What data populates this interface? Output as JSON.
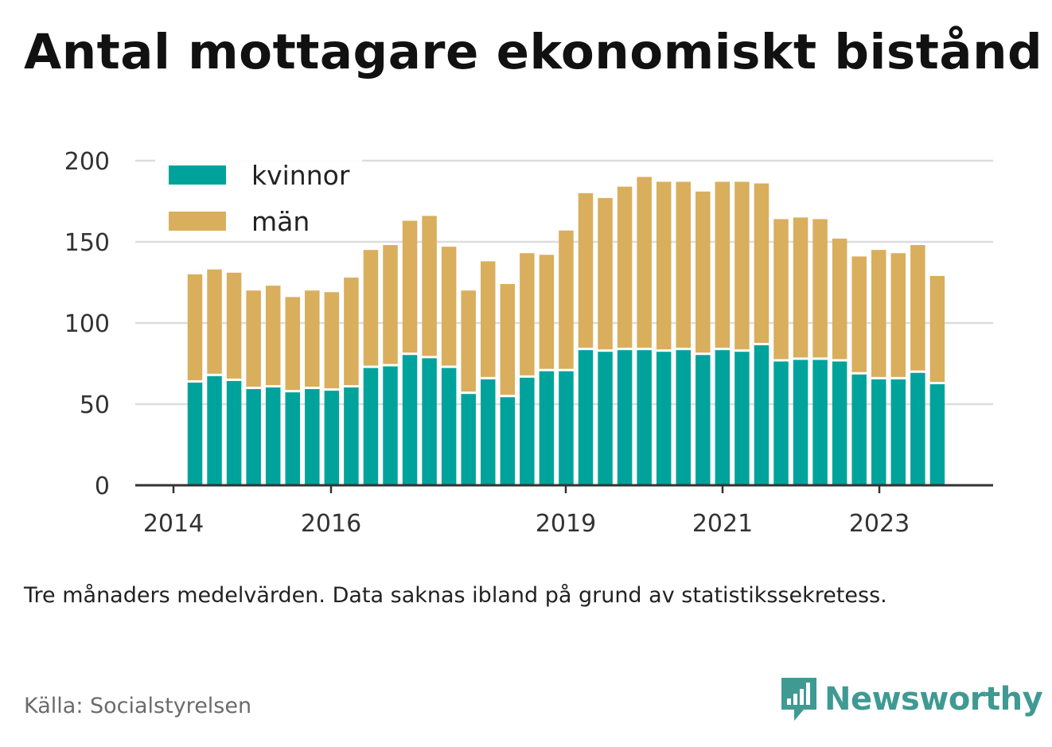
{
  "title": "Antal mottagare ekonomiskt bistånd",
  "note": "Tre månaders medelvärden. Data saknas ibland på grund av statistikssekretess.",
  "source": "Källa: Socialstyrelsen",
  "brand": {
    "name": "Newsworthy",
    "color": "#3f9a93"
  },
  "colors": {
    "kvinnor": "#00a39b",
    "man": "#d9ae5d",
    "grid": "#dddddd",
    "axis": "#333333"
  },
  "chart_data": {
    "type": "bar",
    "stacked": true,
    "legend_position": "top-left",
    "grid": true,
    "ylim": [
      0,
      200
    ],
    "yticks": [
      "0",
      "50",
      "100",
      "150",
      "200"
    ],
    "xticks": [
      "2014",
      "2016",
      "2019",
      "2021",
      "2023"
    ],
    "series": [
      {
        "name": "kvinnor",
        "color": "#00a39b",
        "values": [
          64,
          68,
          65,
          60,
          61,
          58,
          60,
          59,
          61,
          73,
          74,
          81,
          79,
          73,
          57,
          66,
          55,
          67,
          71,
          71,
          84,
          83,
          84,
          84,
          83,
          84,
          81,
          84,
          83,
          87,
          77,
          78,
          78,
          77,
          69,
          66,
          66,
          70,
          63
        ]
      },
      {
        "name": "män",
        "color": "#d9ae5d",
        "values": [
          66,
          65,
          66,
          60,
          62,
          58,
          60,
          60,
          67,
          72,
          74,
          82,
          87,
          74,
          63,
          72,
          69,
          76,
          71,
          86,
          96,
          94,
          100,
          106,
          104,
          103,
          100,
          103,
          104,
          99,
          87,
          87,
          86,
          75,
          72,
          79,
          77,
          78,
          66
        ]
      }
    ],
    "totals": [
      130,
      133,
      131,
      120,
      123,
      116,
      120,
      119,
      128,
      145,
      148,
      163,
      166,
      147,
      120,
      138,
      124,
      143,
      142,
      157,
      180,
      177,
      184,
      190,
      187,
      187,
      181,
      187,
      187,
      186,
      164,
      165,
      164,
      152,
      141,
      145,
      143,
      148,
      129
    ]
  }
}
